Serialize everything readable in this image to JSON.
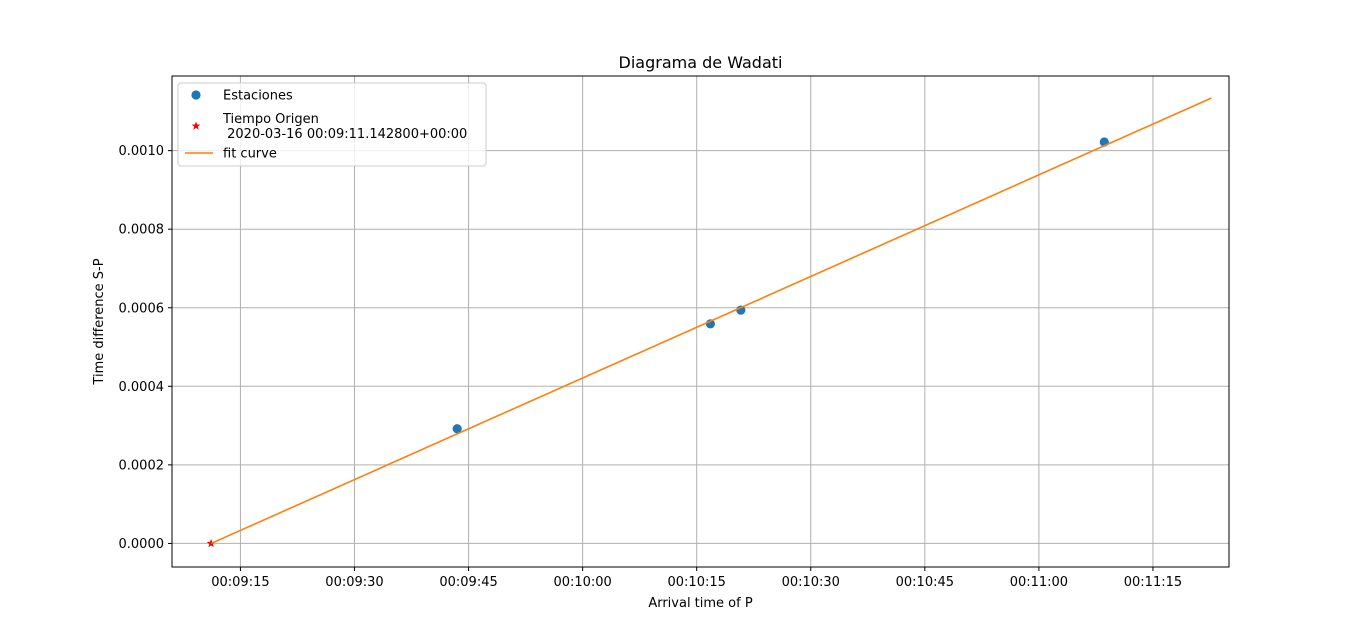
{
  "chart_data": {
    "type": "scatter",
    "title": "Diagrama de Wadati",
    "xlabel": "Arrival time of P",
    "ylabel": "Time difference S-P",
    "xlim": [
      "00:09:06",
      "00:11:25"
    ],
    "ylim": [
      -6e-05,
      0.00119
    ],
    "x_ticks": [
      "00:09:15",
      "00:09:30",
      "00:09:45",
      "00:10:00",
      "00:10:15",
      "00:10:30",
      "00:10:45",
      "00:11:00",
      "00:11:15"
    ],
    "y_ticks": [
      "0.0000",
      "0.0002",
      "0.0004",
      "0.0006",
      "0.0008",
      "0.0010"
    ],
    "grid": true,
    "legend_position": "top-left",
    "series": [
      {
        "name": "Estaciones",
        "kind": "scatter",
        "marker": "circle",
        "color": "#1f77b4",
        "points": [
          {
            "x": "00:09:43.5",
            "y": 0.000292
          },
          {
            "x": "00:10:16.8",
            "y": 0.000559
          },
          {
            "x": "00:10:20.8",
            "y": 0.000594
          },
          {
            "x": "00:11:08.6",
            "y": 0.001022
          }
        ]
      },
      {
        "name": "Tiempo Origen\n 2020-03-16 00:09:11.142800+00:00",
        "kind": "scatter",
        "marker": "star",
        "color": "#ff0000",
        "points": [
          {
            "x": "00:09:11.1428",
            "y": 0.0
          }
        ]
      },
      {
        "name": "fit curve",
        "kind": "line",
        "color": "#ff7f0e",
        "points": [
          {
            "x": "00:09:11.1428",
            "y": 0.0
          },
          {
            "x": "00:11:22.7",
            "y": 0.001134
          }
        ]
      }
    ]
  }
}
